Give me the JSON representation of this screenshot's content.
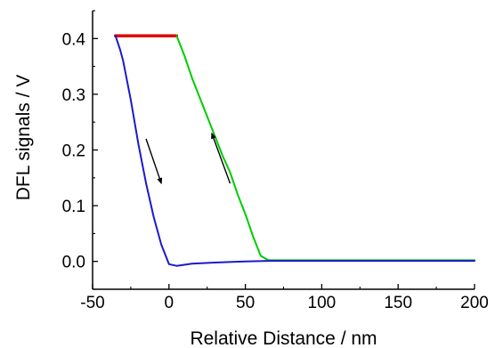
{
  "chart_data": {
    "type": "line",
    "title": "",
    "xlabel": "Relative Distance / nm",
    "ylabel": "DFL signals / V",
    "xlim": [
      -50,
      200
    ],
    "ylim": [
      -0.05,
      0.45
    ],
    "xticks": [
      -50,
      0,
      50,
      100,
      150,
      200
    ],
    "xtick_labels": [
      "-50",
      "0",
      "50",
      "100",
      "150",
      "200"
    ],
    "yticks": [
      0.0,
      0.1,
      0.2,
      0.3,
      0.4
    ],
    "ytick_labels": [
      "0.0",
      "0.1",
      "0.2",
      "0.3",
      "0.4"
    ],
    "grid": false,
    "legend": "none",
    "series": [
      {
        "color": "#e00000",
        "x": [
          -35,
          -30,
          -25,
          -20,
          -15,
          -10,
          -5,
          0,
          5
        ],
        "y": [
          0.405,
          0.405,
          0.405,
          0.405,
          0.405,
          0.405,
          0.405,
          0.405,
          0.405
        ]
      },
      {
        "color": "#00cc00",
        "x": [
          5,
          10,
          15,
          20,
          25,
          30,
          35,
          40,
          45,
          50,
          55,
          60,
          65,
          100,
          150,
          200
        ],
        "y": [
          0.405,
          0.37,
          0.33,
          0.295,
          0.26,
          0.225,
          0.19,
          0.16,
          0.12,
          0.085,
          0.045,
          0.01,
          0.002,
          0.002,
          0.002,
          0.002
        ]
      },
      {
        "color": "#1a1acc",
        "x": [
          -35,
          -32,
          -30,
          -25,
          -20,
          -15,
          -10,
          -5,
          0,
          5,
          15,
          30,
          50,
          65,
          100,
          150,
          200
        ],
        "y": [
          0.405,
          0.38,
          0.36,
          0.29,
          0.21,
          0.14,
          0.08,
          0.03,
          -0.005,
          -0.008,
          -0.004,
          -0.002,
          0.0,
          0.001,
          0.001,
          0.001,
          0.001
        ]
      }
    ],
    "annotations": [
      {
        "type": "arrow",
        "x1": -15,
        "y1": 0.22,
        "x2": -5,
        "y2": 0.14,
        "direction": "down"
      },
      {
        "type": "arrow",
        "x1": 40,
        "y1": 0.14,
        "x2": 28,
        "y2": 0.23,
        "direction": "up"
      }
    ]
  }
}
